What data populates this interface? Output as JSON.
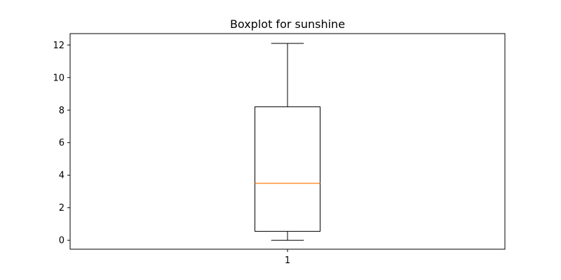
{
  "chart_data": {
    "type": "boxplot",
    "title": "Boxplot for sunshine",
    "xlabel": "",
    "ylabel": "",
    "categories": [
      "1"
    ],
    "boxes": [
      {
        "category": "1",
        "whisker_low": 0.0,
        "q1": 0.55,
        "median": 3.5,
        "q3": 8.2,
        "whisker_high": 12.1
      }
    ],
    "ylim": [
      -0.55,
      12.7
    ],
    "yticks": [
      0,
      2,
      4,
      6,
      8,
      10,
      12
    ],
    "colors": {
      "box": "#000000",
      "median": "#ff7f0e"
    },
    "grid": false
  }
}
